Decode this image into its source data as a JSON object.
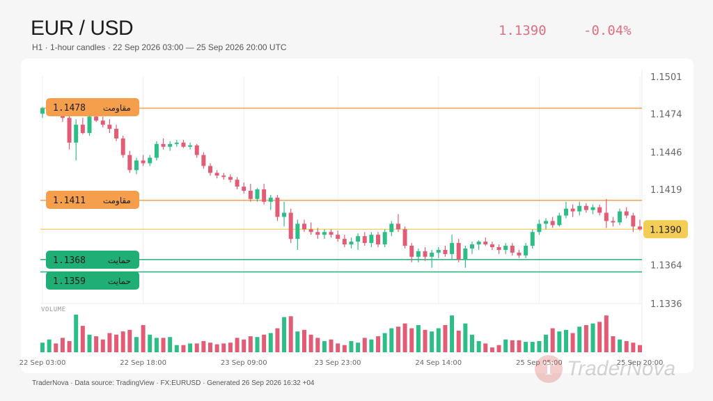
{
  "header": {
    "title": "EUR / USD",
    "subtitle": "H1 · 1-hour candles · 22 Sep 2026 03:00 — 25 Sep 2026 20:00 UTC",
    "last_price": "1.1390",
    "change": "-0.04%"
  },
  "footer": "TraderNova · Data source: TradingView · FX:EURUSD · Generated 26 Sep 2026 16:32 +04",
  "watermark": {
    "text": "TraderNova",
    "logo_letter": "T"
  },
  "colors": {
    "up": "#2dbd86",
    "down": "#e15c74",
    "resistance": "#f59f4c",
    "support": "#1fae73",
    "current": "#f4cd57"
  },
  "chart_data": {
    "type": "candlestick",
    "title": "EUR / USD",
    "y_ticks": [
      1.1501,
      1.1474,
      1.1446,
      1.1419,
      1.1364,
      1.1336
    ],
    "ylim": [
      1.1336,
      1.1501
    ],
    "x_tick_labels": [
      "22 Sep 03:00",
      "22 Sep 18:00",
      "23 Sep 09:00",
      "23 Sep 23:00",
      "24 Sep 14:00",
      "25 Sep 05:00",
      "25 Sep 20:00"
    ],
    "x_tick_index": [
      0,
      15,
      30,
      44,
      59,
      74,
      89
    ],
    "volume_label": "VOLUME",
    "levels": [
      {
        "type": "resistance",
        "label": "مقاومت",
        "value": 1.1478,
        "value_text": "1.1478"
      },
      {
        "type": "resistance",
        "label": "مقاومت",
        "value": 1.1411,
        "value_text": "1.1411"
      },
      {
        "type": "support",
        "label": "حمایت",
        "value": 1.1368,
        "value_text": "1.1368"
      },
      {
        "type": "support",
        "label": "حمایت",
        "value": 1.1359,
        "value_text": "1.1359"
      }
    ],
    "current_price": {
      "value": 1.139,
      "value_text": "1.1390"
    },
    "candles": [
      [
        1.1474,
        1.1479,
        1.1471,
        1.1478
      ],
      [
        1.1478,
        1.1482,
        1.1475,
        1.148
      ],
      [
        1.148,
        1.1483,
        1.1476,
        1.1477
      ],
      [
        1.1477,
        1.1478,
        1.1468,
        1.1471
      ],
      [
        1.1471,
        1.1474,
        1.1448,
        1.1453
      ],
      [
        1.1453,
        1.147,
        1.144,
        1.1466
      ],
      [
        1.1466,
        1.1471,
        1.1459,
        1.146
      ],
      [
        1.146,
        1.1474,
        1.1458,
        1.1472
      ],
      [
        1.1472,
        1.1476,
        1.1468,
        1.1469
      ],
      [
        1.1469,
        1.1472,
        1.1464,
        1.1466
      ],
      [
        1.1466,
        1.147,
        1.146,
        1.1463
      ],
      [
        1.1463,
        1.1466,
        1.1454,
        1.1456
      ],
      [
        1.1456,
        1.1458,
        1.1442,
        1.1444
      ],
      [
        1.1444,
        1.1447,
        1.1431,
        1.1433
      ],
      [
        1.1433,
        1.1442,
        1.143,
        1.144
      ],
      [
        1.144,
        1.1444,
        1.1436,
        1.1438
      ],
      [
        1.1438,
        1.1444,
        1.1436,
        1.1442
      ],
      [
        1.1442,
        1.1454,
        1.144,
        1.1452
      ],
      [
        1.1452,
        1.1456,
        1.1448,
        1.145
      ],
      [
        1.145,
        1.1454,
        1.1447,
        1.1452
      ],
      [
        1.1452,
        1.1455,
        1.145,
        1.1453
      ],
      [
        1.1453,
        1.1455,
        1.1449,
        1.145
      ],
      [
        1.145,
        1.1453,
        1.1448,
        1.1451
      ],
      [
        1.1451,
        1.1452,
        1.1442,
        1.1444
      ],
      [
        1.1444,
        1.1446,
        1.1434,
        1.1436
      ],
      [
        1.1436,
        1.1438,
        1.1429,
        1.1431
      ],
      [
        1.1431,
        1.1433,
        1.1427,
        1.1429
      ],
      [
        1.1429,
        1.1431,
        1.1426,
        1.1428
      ],
      [
        1.1428,
        1.143,
        1.1424,
        1.1426
      ],
      [
        1.1426,
        1.1428,
        1.1419,
        1.1421
      ],
      [
        1.1421,
        1.1424,
        1.1416,
        1.1418
      ],
      [
        1.1418,
        1.1423,
        1.141,
        1.1412
      ],
      [
        1.1412,
        1.142,
        1.141,
        1.1419
      ],
      [
        1.1419,
        1.1423,
        1.1408,
        1.141
      ],
      [
        1.141,
        1.1415,
        1.1404,
        1.1413
      ],
      [
        1.1413,
        1.1415,
        1.1396,
        1.1399
      ],
      [
        1.1399,
        1.141,
        1.1392,
        1.1402
      ],
      [
        1.1402,
        1.1405,
        1.138,
        1.1383
      ],
      [
        1.1383,
        1.1397,
        1.1375,
        1.1394
      ],
      [
        1.1394,
        1.1397,
        1.1388,
        1.139
      ],
      [
        1.139,
        1.1395,
        1.1386,
        1.1388
      ],
      [
        1.1388,
        1.1391,
        1.1383,
        1.1386
      ],
      [
        1.1386,
        1.139,
        1.1383,
        1.1388
      ],
      [
        1.1388,
        1.139,
        1.1384,
        1.1386
      ],
      [
        1.1386,
        1.1389,
        1.1381,
        1.1383
      ],
      [
        1.1383,
        1.1386,
        1.1377,
        1.1379
      ],
      [
        1.1379,
        1.1384,
        1.1376,
        1.1381
      ],
      [
        1.1381,
        1.1387,
        1.1375,
        1.1385
      ],
      [
        1.1385,
        1.1388,
        1.1378,
        1.138
      ],
      [
        1.138,
        1.1388,
        1.1377,
        1.1386
      ],
      [
        1.1386,
        1.1388,
        1.1377,
        1.1379
      ],
      [
        1.1379,
        1.139,
        1.1377,
        1.1388
      ],
      [
        1.1388,
        1.1396,
        1.1385,
        1.1394
      ],
      [
        1.1394,
        1.1401,
        1.1388,
        1.139
      ],
      [
        1.139,
        1.1392,
        1.1376,
        1.1378
      ],
      [
        1.1378,
        1.138,
        1.1366,
        1.137
      ],
      [
        1.137,
        1.1376,
        1.1366,
        1.1374
      ],
      [
        1.1374,
        1.1377,
        1.1367,
        1.137
      ],
      [
        1.137,
        1.1375,
        1.1362,
        1.1373
      ],
      [
        1.1373,
        1.1377,
        1.1369,
        1.1375
      ],
      [
        1.1375,
        1.1378,
        1.137,
        1.1372
      ],
      [
        1.1372,
        1.1386,
        1.1368,
        1.138
      ],
      [
        1.138,
        1.1383,
        1.1366,
        1.1368
      ],
      [
        1.1368,
        1.1378,
        1.1362,
        1.1376
      ],
      [
        1.1376,
        1.1381,
        1.1372,
        1.1379
      ],
      [
        1.1379,
        1.1382,
        1.1375,
        1.1381
      ],
      [
        1.1381,
        1.1384,
        1.1378,
        1.1379
      ],
      [
        1.1379,
        1.1381,
        1.1375,
        1.1377
      ],
      [
        1.1377,
        1.1379,
        1.1372,
        1.1375
      ],
      [
        1.1375,
        1.138,
        1.1372,
        1.1378
      ],
      [
        1.1378,
        1.138,
        1.1371,
        1.1373
      ],
      [
        1.1373,
        1.1375,
        1.1369,
        1.1371
      ],
      [
        1.1371,
        1.138,
        1.1369,
        1.1378
      ],
      [
        1.1378,
        1.139,
        1.1376,
        1.1388
      ],
      [
        1.1388,
        1.1397,
        1.1386,
        1.1394
      ],
      [
        1.1394,
        1.1398,
        1.139,
        1.1396
      ],
      [
        1.1396,
        1.1399,
        1.1391,
        1.1393
      ],
      [
        1.1393,
        1.1402,
        1.1392,
        1.14
      ],
      [
        1.14,
        1.141,
        1.1398,
        1.1405
      ],
      [
        1.1405,
        1.1408,
        1.1399,
        1.1403
      ],
      [
        1.1403,
        1.141,
        1.14,
        1.1407
      ],
      [
        1.1407,
        1.1409,
        1.1402,
        1.1404
      ],
      [
        1.1404,
        1.1408,
        1.1401,
        1.1406
      ],
      [
        1.1406,
        1.1408,
        1.14,
        1.1402
      ],
      [
        1.1402,
        1.1412,
        1.1391,
        1.1396
      ],
      [
        1.1396,
        1.1399,
        1.1392,
        1.1395
      ],
      [
        1.1395,
        1.1405,
        1.1393,
        1.1403
      ],
      [
        1.1403,
        1.1406,
        1.1398,
        1.14
      ],
      [
        1.14,
        1.1402,
        1.1388,
        1.1392
      ],
      [
        1.1392,
        1.1397,
        1.1389,
        1.139
      ]
    ],
    "volume": [
      12,
      16,
      11,
      18,
      14,
      47,
      33,
      22,
      20,
      16,
      24,
      22,
      26,
      28,
      19,
      34,
      22,
      18,
      18,
      19,
      9,
      9,
      11,
      11,
      14,
      12,
      10,
      11,
      12,
      18,
      16,
      20,
      19,
      22,
      24,
      30,
      44,
      45,
      26,
      28,
      22,
      18,
      14,
      16,
      11,
      9,
      14,
      12,
      18,
      16,
      20,
      24,
      30,
      32,
      36,
      30,
      34,
      28,
      26,
      30,
      34,
      46,
      27,
      36,
      22,
      14,
      11,
      6,
      9,
      16,
      15,
      15,
      13,
      13,
      14,
      22,
      30,
      26,
      28,
      24,
      32,
      34,
      36,
      38,
      46,
      20,
      16,
      14,
      12,
      9
    ]
  }
}
